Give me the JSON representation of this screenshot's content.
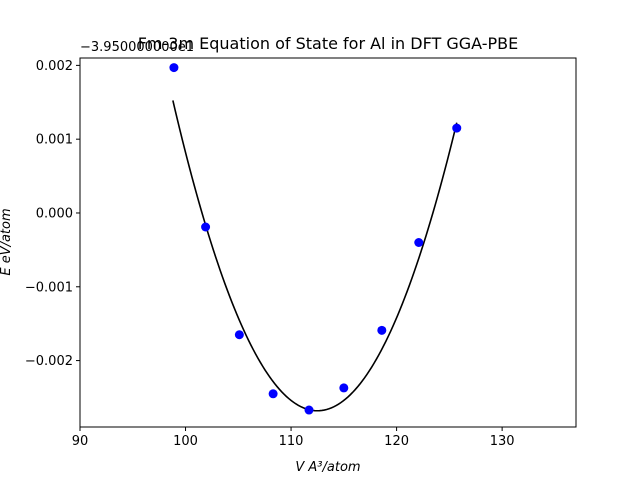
{
  "chart_data": {
    "type": "scatter",
    "title": "Fm-3m Equation of State for Al in DFT GGA-PBE",
    "xlabel": "V A³/atom",
    "ylabel": "E eV/atom",
    "y_offset_label": "−3.950000000e1",
    "xlim": [
      90,
      137
    ],
    "ylim": [
      -0.0029,
      0.0021
    ],
    "x_ticks": [
      90,
      100,
      110,
      120,
      130
    ],
    "x_tick_labels": [
      "90",
      "100",
      "110",
      "120",
      "130"
    ],
    "y_ticks": [
      -0.002,
      -0.001,
      0.0,
      0.001,
      0.002
    ],
    "y_tick_labels": [
      "−0.002",
      "−0.001",
      "0.000",
      "0.001",
      "0.002"
    ],
    "grid": false,
    "series": [
      {
        "kind": "points",
        "color": "#0000ff",
        "points": [
          [
            98.9,
            0.00197
          ],
          [
            101.9,
            -0.00019
          ],
          [
            105.1,
            -0.00165
          ],
          [
            108.3,
            -0.00245
          ],
          [
            111.7,
            -0.00267
          ],
          [
            115.0,
            -0.00237
          ],
          [
            118.6,
            -0.00159
          ],
          [
            122.1,
            -0.0004
          ],
          [
            125.7,
            0.00115
          ]
        ]
      },
      {
        "kind": "fit-line",
        "color": "#000000",
        "x_range": [
          98.8,
          125.7
        ],
        "vertex": [
          112.5,
          -0.00268
        ],
        "curvature": 2.24e-05
      }
    ]
  }
}
